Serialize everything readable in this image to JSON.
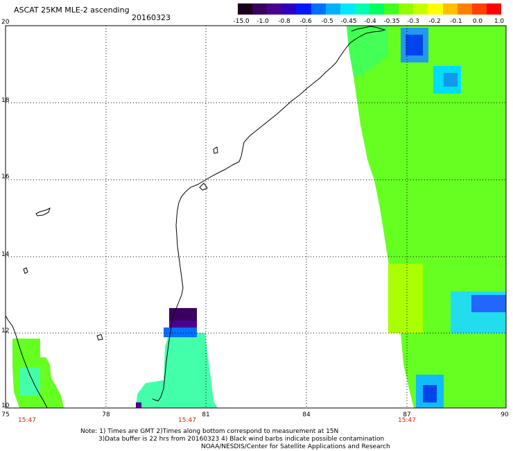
{
  "header": {
    "title": "ASCAT 25KM MLE-2 ascending",
    "date": "20160323"
  },
  "colorbar": {
    "labels": [
      "-15.0",
      "-1.0",
      "-0.8",
      "-0.6",
      "-0.5",
      "-0.45",
      "-0.4",
      "-0.35",
      "-0.3",
      "-0.2",
      "-0.1",
      "0.0",
      "1.0"
    ],
    "colors": [
      "#1a001a",
      "#3a0060",
      "#4a0090",
      "#3000c0",
      "#0018ff",
      "#0070ff",
      "#00b0ff",
      "#00e8ff",
      "#00ffb0",
      "#00ff60",
      "#40ff20",
      "#90ff00",
      "#c8ff00",
      "#ffff00",
      "#ffc000",
      "#ff8000",
      "#ff4000",
      "#ff0000"
    ]
  },
  "axes": {
    "y_labels": [
      "20",
      "18",
      "16",
      "14",
      "12",
      "10"
    ],
    "x_labels": [
      "75",
      "78",
      "81",
      "84",
      "87",
      "90"
    ]
  },
  "pass_times": [
    "15:47",
    "15:47",
    "15:47"
  ],
  "footer": {
    "note1": "Note: 1) Times are GMT 2)Times along bottom correspond to measurement at 15N",
    "note2": "3)Data buffer is 22 hrs from 20160323 4) Black wind barbs indicate possible contamination",
    "credit": "NOAA/NESDIS/Center for Satellite Applications and Research"
  }
}
